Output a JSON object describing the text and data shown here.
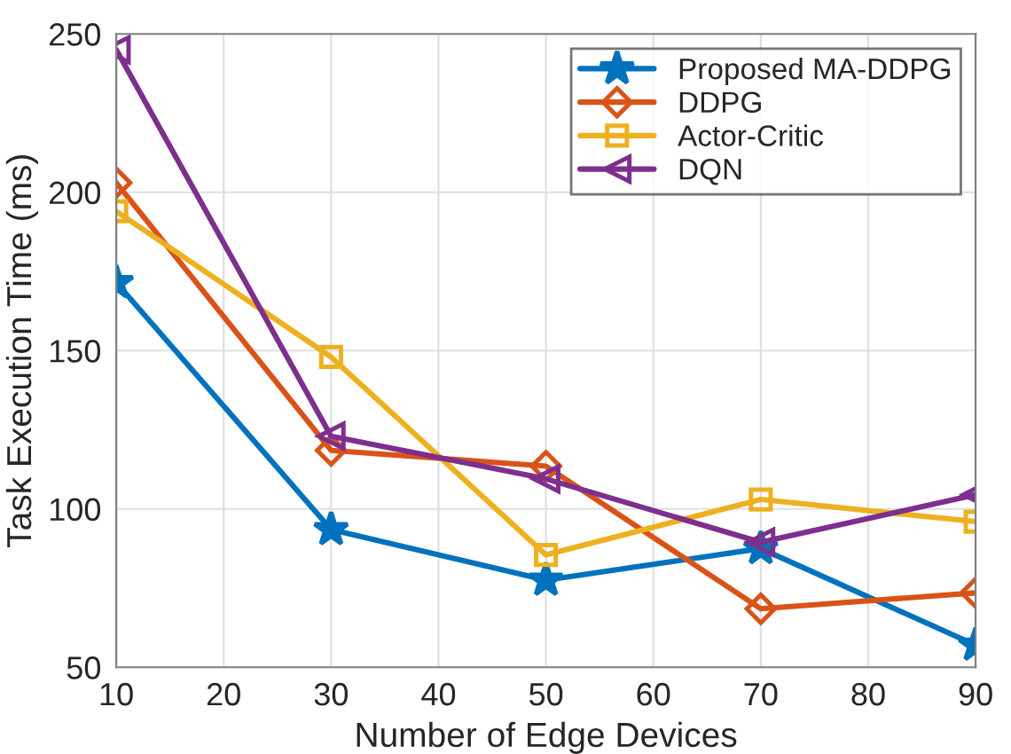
{
  "chart_data": {
    "type": "line",
    "xlabel": "Number of Edge Devices",
    "ylabel": "Task Execution Time (ms)",
    "x": [
      10,
      30,
      50,
      70,
      90
    ],
    "series": [
      {
        "name": "Proposed MA-DDPG",
        "color": "#0072bd",
        "marker": "star",
        "values": [
          171.5,
          93.5,
          77.5,
          87.5,
          57
        ]
      },
      {
        "name": "DDPG",
        "color": "#d95319",
        "marker": "diamond",
        "values": [
          203,
          118.5,
          113.5,
          68.5,
          73.5
        ]
      },
      {
        "name": "Actor-Critic",
        "color": "#edb120",
        "marker": "square",
        "values": [
          194,
          148,
          85.5,
          103,
          96
        ]
      },
      {
        "name": "DQN",
        "color": "#7e2f8e",
        "marker": "triangle",
        "values": [
          245,
          123,
          109.5,
          89.5,
          104.5
        ]
      }
    ],
    "xlim": [
      10,
      90
    ],
    "xticks": [
      10,
      20,
      30,
      40,
      50,
      60,
      70,
      80,
      90
    ],
    "ylim": [
      50,
      250
    ],
    "yticks": [
      50,
      100,
      150,
      200,
      250
    ],
    "grid": true,
    "legend": "top right",
    "line_style": "solid"
  }
}
